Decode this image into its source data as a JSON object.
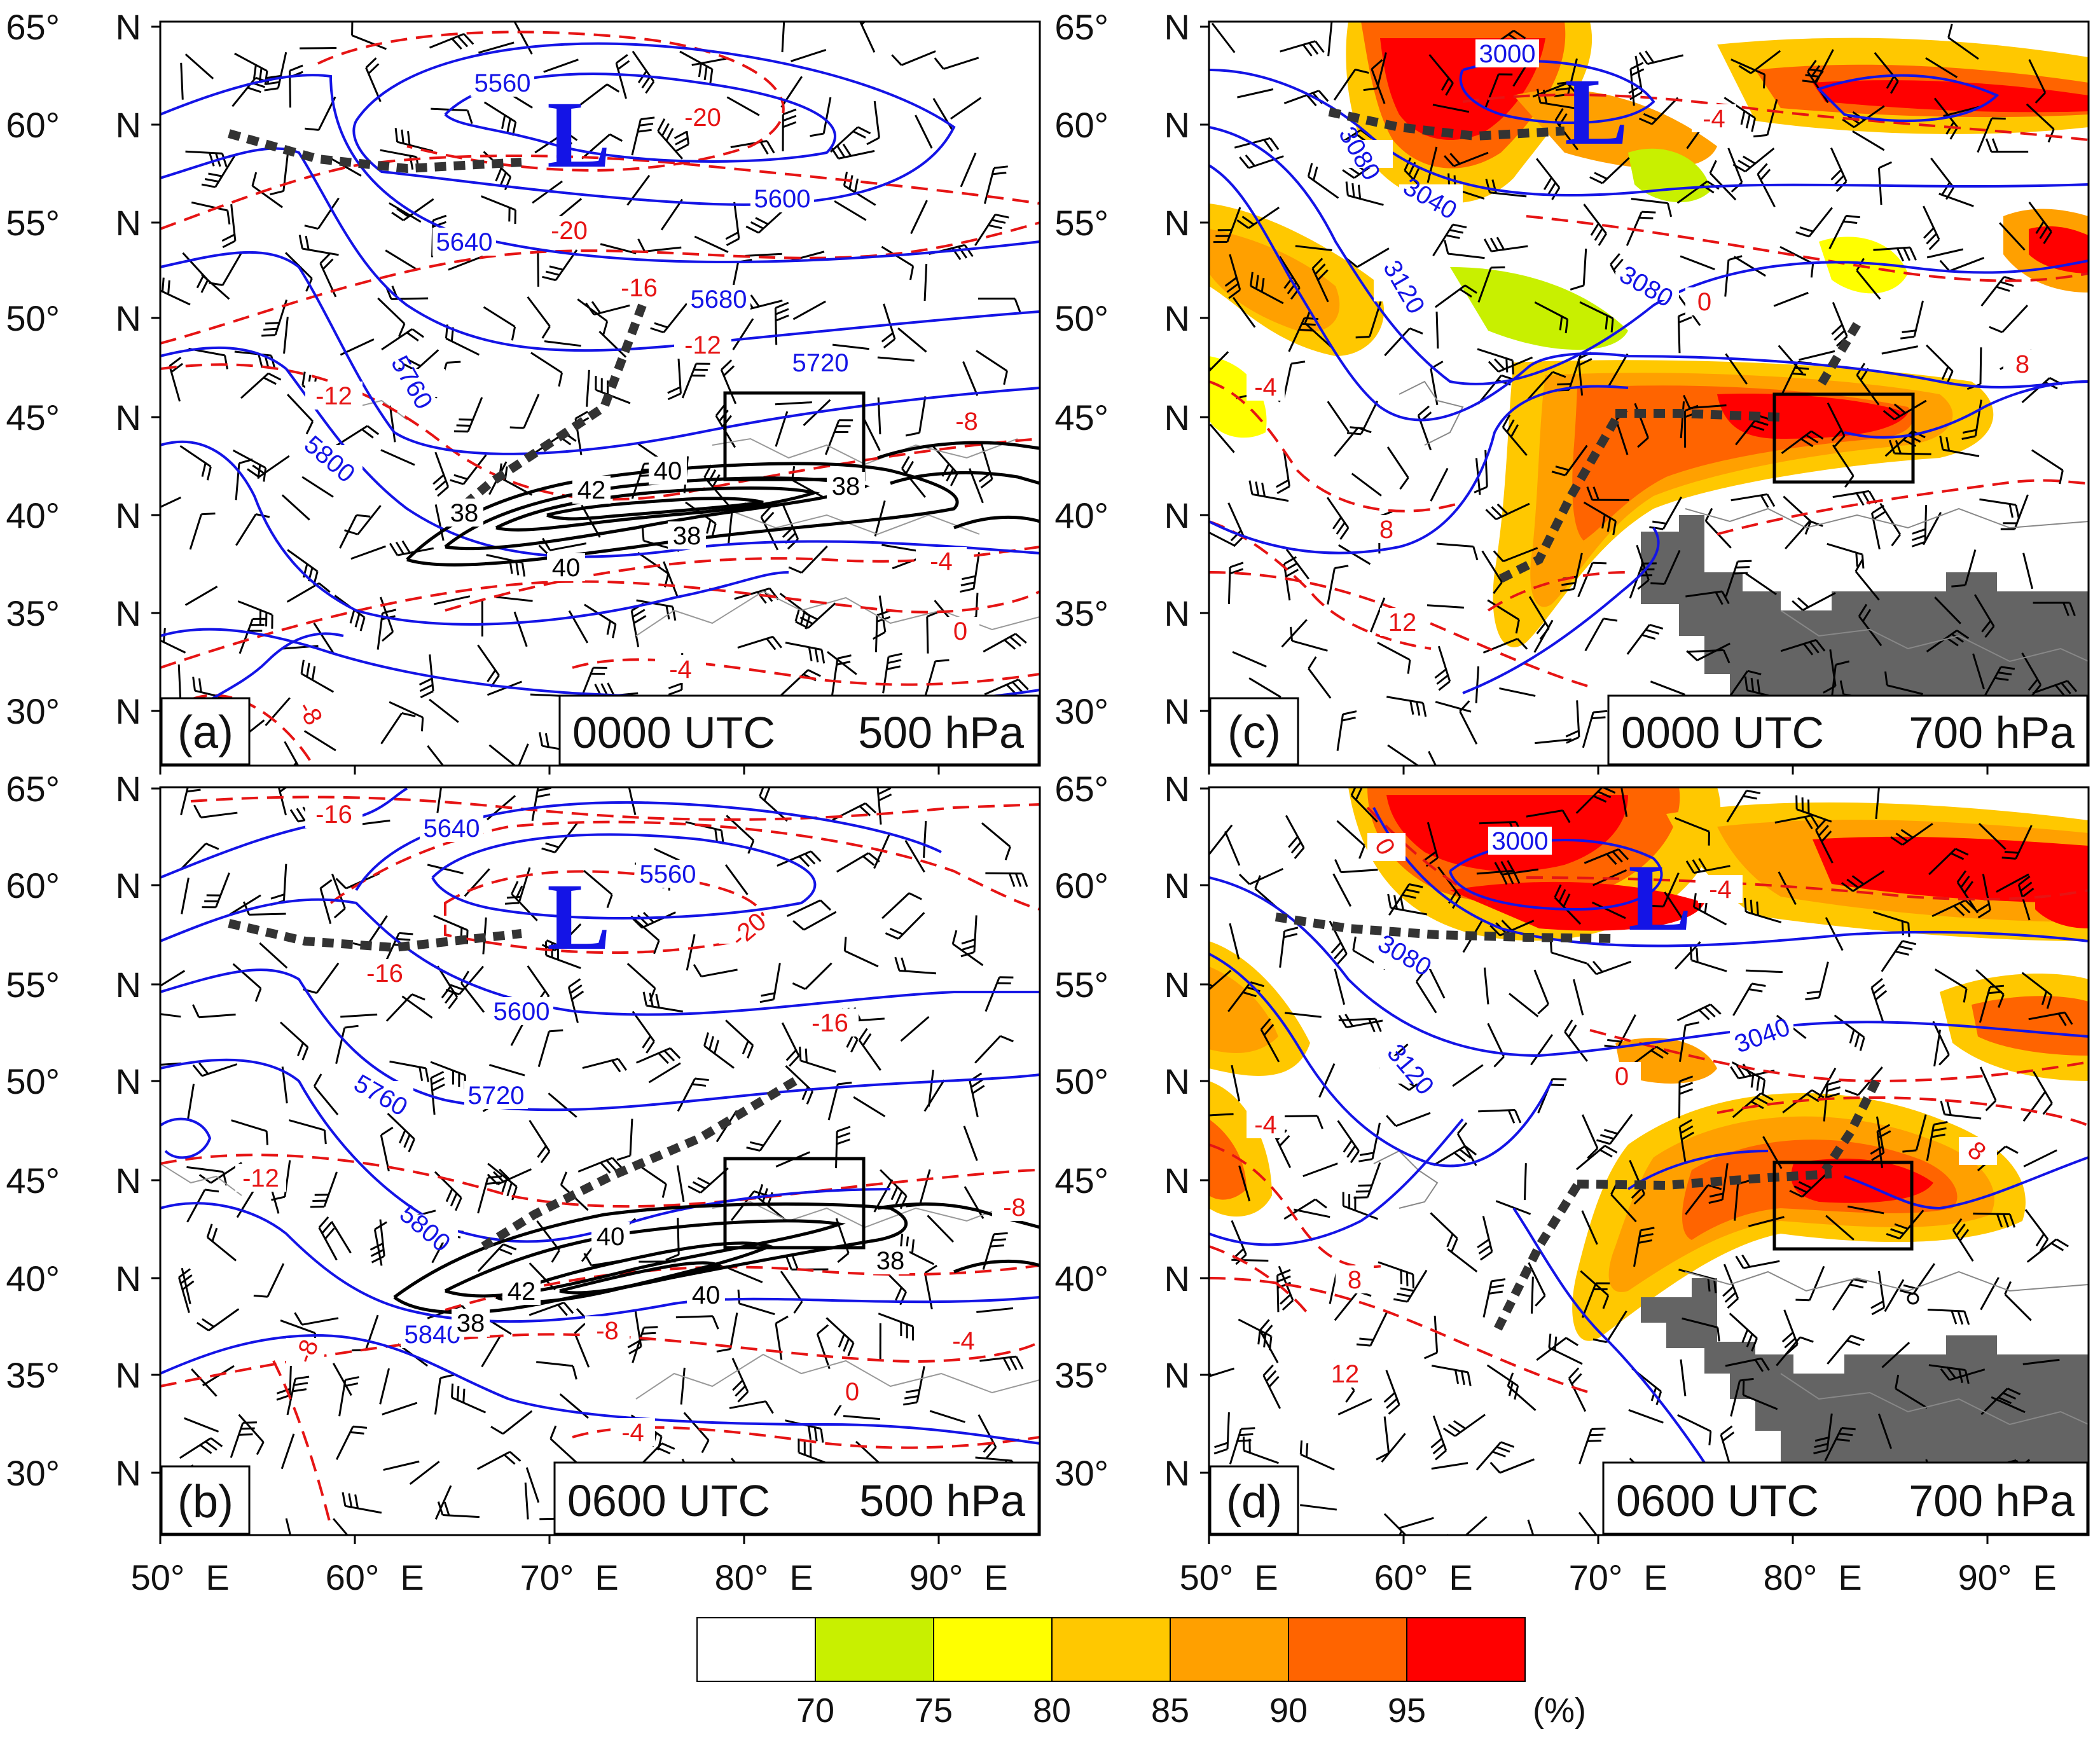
{
  "lat_ticks": [
    "65°",
    "60°",
    "55°",
    "50°",
    "45°",
    "40°",
    "35°",
    "30°"
  ],
  "lat_suffix": "N",
  "lon_ticks": [
    "50°",
    "60°",
    "70°",
    "80°",
    "90°"
  ],
  "lon_suffix": "E",
  "panels": [
    {
      "letter": "(a)",
      "time": "0000 UTC",
      "level": "500 hPa",
      "low_symbol": "L",
      "blue_labels": [
        "5560",
        "5600",
        "5640",
        "5680",
        "5720",
        "5760",
        "5800"
      ],
      "red_labels": [
        "-20",
        "-20",
        "-16",
        "-12",
        "-12",
        "-8",
        "-4",
        "-4",
        "0",
        "-8"
      ],
      "black_labels": [
        "38",
        "42",
        "40",
        "38",
        "40",
        "38"
      ]
    },
    {
      "letter": "(b)",
      "time": "0600 UTC",
      "level": "500 hPa",
      "low_symbol": "L",
      "blue_labels": [
        "5640",
        "5560",
        "5600",
        "5720",
        "5760",
        "5800",
        "5840"
      ],
      "red_labels": [
        "-16",
        "-20",
        "-16",
        "-16",
        "-12",
        "-8",
        "-8",
        "-4",
        "0",
        "-4",
        "-8"
      ],
      "black_labels": [
        "40",
        "42",
        "38",
        "40",
        "38"
      ]
    },
    {
      "letter": "(c)",
      "time": "0000 UTC",
      "level": "700 hPa",
      "low_symbol": "L",
      "blue_labels": [
        "3000",
        "3080",
        "3040",
        "3120",
        "3080"
      ],
      "red_labels": [
        "-4",
        "0",
        "-4",
        "8",
        "8",
        "12",
        "8"
      ]
    },
    {
      "letter": "(d)",
      "time": "0600 UTC",
      "level": "700 hPa",
      "low_symbol": "L",
      "blue_labels": [
        "3000",
        "3080",
        "3120",
        "3040"
      ],
      "red_labels": [
        "0",
        "-4",
        "0",
        "-4",
        "8",
        "8",
        "12",
        "8"
      ]
    }
  ],
  "colorbar": {
    "ticks": [
      "70",
      "75",
      "80",
      "85",
      "90",
      "95"
    ],
    "unit": "(%)",
    "colors": [
      "#ffffff",
      "#c8f000",
      "#ffff00",
      "#ffc800",
      "#ffa000",
      "#ff6400",
      "#ff0000"
    ]
  },
  "colors": {
    "height_contour": "#1414e6",
    "temperature_contour": "#e61414",
    "wind_speed_contour": "#000000",
    "terrain_mask": "#646464",
    "trough_line": "#333333"
  }
}
